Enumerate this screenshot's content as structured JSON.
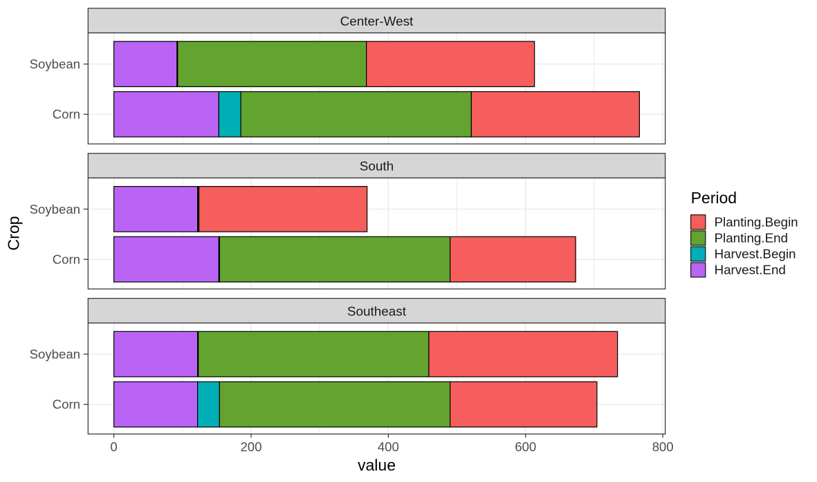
{
  "chart_data": {
    "type": "bar",
    "orientation": "horizontal",
    "stacked": true,
    "title": "",
    "xlabel": "value",
    "ylabel": "Crop",
    "xlim": [
      -37,
      803
    ],
    "x_major_ticks": [
      0,
      200,
      400,
      600,
      800
    ],
    "x_minor_gridlines": [
      100,
      300,
      500,
      700
    ],
    "categories": [
      "Soybean",
      "Corn"
    ],
    "stack_order": [
      "Harvest.End",
      "Harvest.Begin",
      "Planting.End",
      "Planting.Begin"
    ],
    "series_colors": {
      "Planting.Begin": "#F55E5C",
      "Planting.End": "#62A42F",
      "Harvest.Begin": "#00AFB5",
      "Harvest.End": "#B964F5"
    },
    "facets": [
      {
        "label": "Center-West",
        "rows": [
          {
            "category": "Soybean",
            "values": {
              "Planting.Begin": 245,
              "Planting.End": 275,
              "Harvest.Begin": 1,
              "Harvest.End": 92
            }
          },
          {
            "category": "Corn",
            "values": {
              "Planting.Begin": 245,
              "Planting.End": 336,
              "Harvest.Begin": 32,
              "Harvest.End": 153
            }
          }
        ]
      },
      {
        "label": "South",
        "rows": [
          {
            "category": "Soybean",
            "values": {
              "Planting.Begin": 245,
              "Planting.End": 1,
              "Harvest.Begin": 1,
              "Harvest.End": 122
            }
          },
          {
            "category": "Corn",
            "values": {
              "Planting.Begin": 183,
              "Planting.End": 336,
              "Harvest.Begin": 1,
              "Harvest.End": 153
            }
          }
        ]
      },
      {
        "label": "Southeast",
        "rows": [
          {
            "category": "Soybean",
            "values": {
              "Planting.Begin": 275,
              "Planting.End": 336,
              "Harvest.Begin": 1,
              "Harvest.End": 122
            }
          },
          {
            "category": "Corn",
            "values": {
              "Planting.Begin": 214,
              "Planting.End": 336,
              "Harvest.Begin": 32,
              "Harvest.End": 122
            }
          }
        ]
      }
    ],
    "legend": {
      "title": "Period",
      "position": "right",
      "entries": [
        {
          "label": "Planting.Begin",
          "color": "#F55E5C"
        },
        {
          "label": "Planting.End",
          "color": "#62A42F"
        },
        {
          "label": "Harvest.Begin",
          "color": "#00AFB5"
        },
        {
          "label": "Harvest.End",
          "color": "#B964F5"
        }
      ]
    },
    "grid": true,
    "theme": {
      "panel_background": "#FFFFFF",
      "strip_background": "#D6D6D6",
      "panel_border": "#333333",
      "grid_major_color": "#E7E7E7",
      "grid_minor_color": "#EAEAEA",
      "bar_outline": "#000000",
      "axis_text_color": "#4D4D4D",
      "strip_text_color": "#1A1A1A",
      "title_text_color": "#000000",
      "tick_color": "#333333"
    }
  }
}
